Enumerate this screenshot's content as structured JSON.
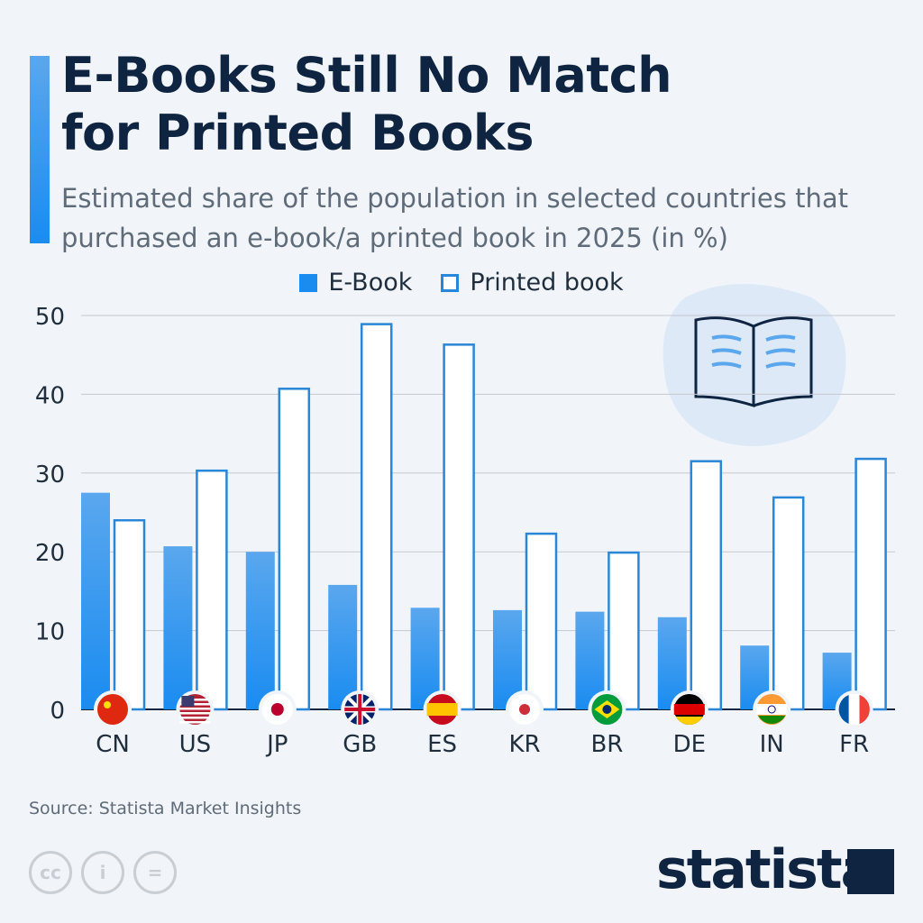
{
  "title": "E-Books Still No Match\nfor Printed Books",
  "subtitle": "Estimated share of the population in selected countries that purchased an e-book/a printed book in 2025 (in %)",
  "source": "Source: Statista Market Insights",
  "brand": "statista",
  "license_icons": [
    "cc",
    "by",
    "nd"
  ],
  "colors": {
    "ebook": "#1a8cf0",
    "printed_border": "#2a86d6",
    "printed_fill": "#ffffff"
  },
  "chart_data": {
    "type": "bar",
    "categories": [
      "CN",
      "US",
      "JP",
      "GB",
      "ES",
      "KR",
      "BR",
      "DE",
      "IN",
      "FR"
    ],
    "series": [
      {
        "name": "E-Book",
        "values": [
          27.5,
          20.7,
          20.0,
          15.8,
          12.9,
          12.6,
          12.4,
          11.7,
          8.1,
          7.2
        ]
      },
      {
        "name": "Printed book",
        "values": [
          24.0,
          30.3,
          40.7,
          48.9,
          46.3,
          22.3,
          19.9,
          31.5,
          26.9,
          31.8
        ]
      }
    ],
    "ylim": [
      0,
      50
    ],
    "yticks": [
      "0",
      "10",
      "20",
      "30",
      "40",
      "50"
    ],
    "grid": true,
    "legend": "top-center"
  }
}
